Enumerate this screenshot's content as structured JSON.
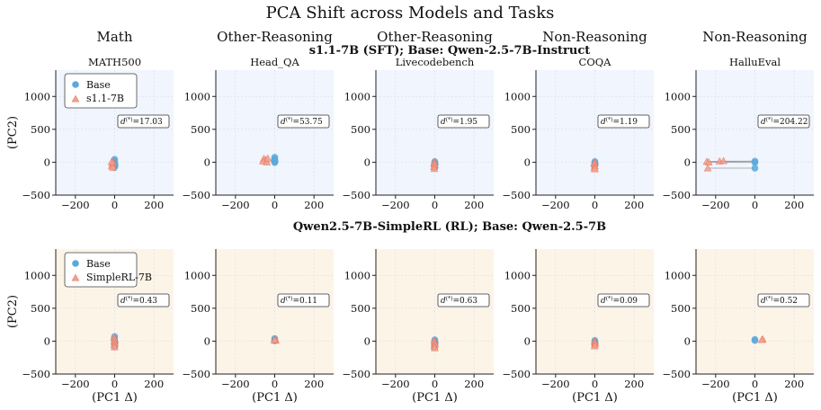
{
  "figure_title": "PCA Shift across Models and Tasks",
  "colors": {
    "base": "#5aa9dc",
    "model": "#e8664f",
    "model_light": "#f0a08c",
    "bg_sft": "#f0f5fe",
    "bg_rl": "#fdf4e8",
    "grid": "#d9dde3"
  },
  "chart_data": [
    {
      "row": "s1.1-7B (SFT); Base: Qwen-2.5-7B-Instruct",
      "type": "scatter",
      "xlabel": "",
      "ylabel": "(PC2)",
      "xlim": [
        -300,
        300
      ],
      "ylim": [
        -500,
        1400
      ],
      "xticks": [
        -200,
        0,
        200
      ],
      "yticks": [
        -500,
        0,
        500,
        1000
      ],
      "grid": true,
      "legend": {
        "placement": "top-left",
        "panel": 0,
        "entries": [
          "Base",
          "s1.1-7B"
        ]
      },
      "panels": [
        {
          "category": "Math",
          "task": "MATH500",
          "annotation": "=17.03",
          "base": [
            [
              0,
              45
            ],
            [
              -3,
              20
            ],
            [
              0,
              0
            ],
            [
              -4,
              -20
            ],
            [
              2,
              -40
            ],
            [
              1,
              -65
            ],
            [
              -2,
              -80
            ]
          ],
          "model": [
            [
              -10,
              10
            ],
            [
              -8,
              -10
            ],
            [
              -12,
              -35
            ],
            [
              -14,
              -60
            ],
            [
              -9,
              -80
            ],
            [
              -16,
              5
            ]
          ]
        },
        {
          "category": "Other-Reasoning",
          "task": "Head_QA",
          "annotation": "=53.75",
          "base": [
            [
              0,
              75
            ],
            [
              0,
              50
            ],
            [
              -3,
              25
            ],
            [
              2,
              10
            ],
            [
              0,
              -5
            ]
          ],
          "model": [
            [
              -55,
              55
            ],
            [
              -45,
              35
            ],
            [
              -60,
              15
            ],
            [
              -40,
              0
            ],
            [
              -35,
              60
            ]
          ]
        },
        {
          "category": "Other-Reasoning",
          "task": "Livecodebench",
          "annotation": "=1.95",
          "base": [
            [
              0,
              10
            ],
            [
              0,
              -10
            ],
            [
              2,
              -30
            ],
            [
              -2,
              -55
            ],
            [
              0,
              -80
            ]
          ],
          "model": [
            [
              -2,
              5
            ],
            [
              -3,
              -20
            ],
            [
              0,
              -45
            ],
            [
              -4,
              -70
            ],
            [
              -2,
              -100
            ]
          ]
        },
        {
          "category": "Non-Reasoning",
          "task": "COQA",
          "annotation": "=1.19",
          "base": [
            [
              0,
              10
            ],
            [
              0,
              -10
            ],
            [
              2,
              -30
            ],
            [
              -2,
              -50
            ]
          ],
          "model": [
            [
              -1,
              0
            ],
            [
              -3,
              -25
            ],
            [
              0,
              -55
            ],
            [
              -2,
              -85
            ],
            [
              0,
              -105
            ]
          ]
        },
        {
          "category": "Non-Reasoning",
          "task": "HalluEval",
          "annotation": "=204.22",
          "base": [
            [
              0,
              15
            ],
            [
              0,
              -5
            ],
            [
              0,
              -90
            ]
          ],
          "model": [
            [
              -245,
              10
            ],
            [
              -235,
              0
            ],
            [
              -180,
              15
            ],
            [
              -240,
              -90
            ],
            [
              -160,
              20
            ]
          ],
          "links": [
            [
              [
                -245,
                10
              ],
              [
                0,
                15
              ]
            ],
            [
              [
                -235,
                0
              ],
              [
                0,
                -5
              ]
            ],
            [
              [
                -240,
                -90
              ],
              [
                0,
                -90
              ]
            ],
            [
              [
                -180,
                15
              ],
              [
                0,
                15
              ]
            ]
          ]
        }
      ]
    },
    {
      "row": "Qwen2.5-7B-SimpleRL (RL); Base: Qwen-2.5-7B",
      "type": "scatter",
      "xlabel": "(PC1 Δ)",
      "ylabel": "(PC2)",
      "xlim": [
        -300,
        300
      ],
      "ylim": [
        -500,
        1400
      ],
      "xticks": [
        -200,
        0,
        200
      ],
      "yticks": [
        -500,
        0,
        500,
        1000
      ],
      "grid": true,
      "legend": {
        "placement": "top-left",
        "panel": 0,
        "entries": [
          "Base",
          "SimpleRL-7B"
        ]
      },
      "panels": [
        {
          "category": "",
          "task": "",
          "annotation": "=0.43",
          "base": [
            [
              0,
              70
            ],
            [
              -2,
              40
            ],
            [
              0,
              10
            ],
            [
              2,
              -20
            ],
            [
              -1,
              -50
            ],
            [
              0,
              -80
            ]
          ],
          "model": [
            [
              -3,
              60
            ],
            [
              0,
              30
            ],
            [
              -2,
              0
            ],
            [
              1,
              -30
            ],
            [
              -2,
              -60
            ],
            [
              0,
              -90
            ]
          ]
        },
        {
          "category": "",
          "task": "",
          "annotation": "=0.11",
          "base": [
            [
              0,
              40
            ],
            [
              0,
              20
            ],
            [
              0,
              5
            ]
          ],
          "model": [
            [
              3,
              30
            ],
            [
              5,
              10
            ],
            [
              -2,
              15
            ]
          ]
        },
        {
          "category": "",
          "task": "",
          "annotation": "=0.63",
          "base": [
            [
              0,
              20
            ],
            [
              0,
              0
            ],
            [
              2,
              -25
            ],
            [
              0,
              -60
            ],
            [
              -2,
              -90
            ]
          ],
          "model": [
            [
              -3,
              10
            ],
            [
              -1,
              -15
            ],
            [
              1,
              -45
            ],
            [
              -2,
              -75
            ],
            [
              0,
              -105
            ]
          ]
        },
        {
          "category": "",
          "task": "",
          "annotation": "=0.09",
          "base": [
            [
              0,
              10
            ],
            [
              0,
              -10
            ],
            [
              1,
              -30
            ],
            [
              0,
              -55
            ]
          ],
          "model": [
            [
              -1,
              0
            ],
            [
              1,
              -20
            ],
            [
              0,
              -45
            ],
            [
              -1,
              -75
            ]
          ]
        },
        {
          "category": "",
          "task": "",
          "annotation": "=0.52",
          "base": [
            [
              0,
              25
            ],
            [
              0,
              10
            ]
          ],
          "model": [
            [
              40,
              30
            ],
            [
              35,
              20
            ]
          ]
        }
      ]
    }
  ]
}
